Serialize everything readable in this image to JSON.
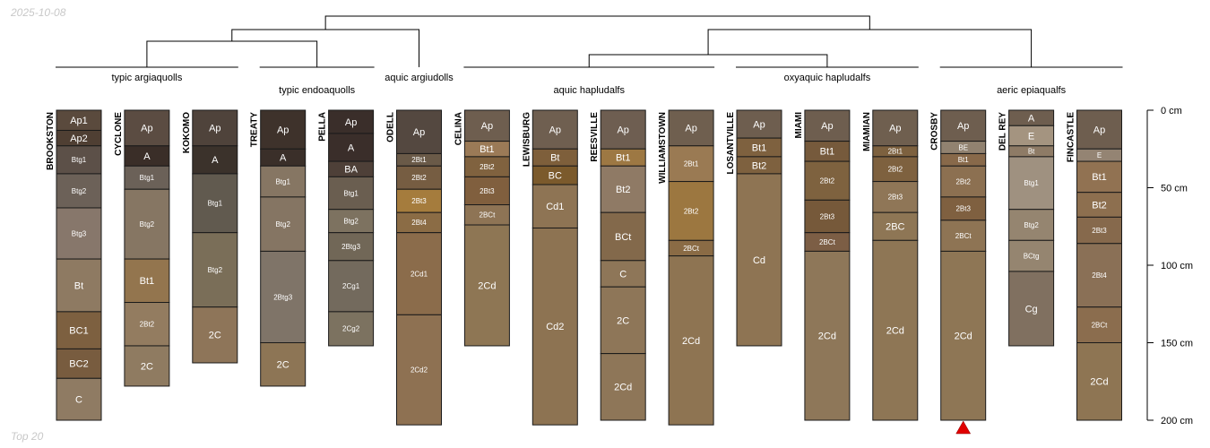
{
  "date_text": "2025-10-08",
  "footer_text": "Top 20",
  "chart_data": {
    "type": "soil-profile-sketch",
    "title": "",
    "depth_unit": "cm",
    "depth_axis": {
      "min": 0,
      "max": 200,
      "ticks": [
        0,
        50,
        100,
        150,
        200
      ],
      "tick_labels": [
        "0 cm",
        "50 cm",
        "100 cm",
        "150 cm",
        "200 cm"
      ]
    },
    "marker": {
      "profile": "CROSBY",
      "shape": "triangle",
      "color": "#e00000"
    },
    "taxa": [
      {
        "name": "typic argiaquolls",
        "row": 0,
        "profiles": [
          "BROOKSTON",
          "CYCLONE",
          "KOKOMO"
        ]
      },
      {
        "name": "typic endoaquolls",
        "row": 1,
        "profiles": [
          "TREATY",
          "PELLA"
        ]
      },
      {
        "name": "aquic argiudolls",
        "row": 0,
        "profiles": [
          "ODELL"
        ]
      },
      {
        "name": "aquic hapludalfs",
        "row": 1,
        "profiles": [
          "CELINA",
          "LEWISBURG",
          "REESVILLE",
          "WILLIAMSTOWN"
        ]
      },
      {
        "name": "oxyaquic hapludalfs",
        "row": 0,
        "profiles": [
          "LOSANTVILLE",
          "MIAMI",
          "MIAMIAN"
        ]
      },
      {
        "name": "aeric epiaqualfs",
        "row": 1,
        "profiles": [
          "CROSBY",
          "DEL REY",
          "FINCASTLE"
        ]
      }
    ],
    "profiles": [
      {
        "name": "BROOKSTON",
        "horizons": [
          {
            "name": "Ap1",
            "top": 0,
            "bottom": 13,
            "color": "#5a4a3d"
          },
          {
            "name": "Ap2",
            "top": 13,
            "bottom": 23,
            "color": "#4f3f33"
          },
          {
            "name": "Btg1",
            "top": 23,
            "bottom": 41,
            "color": "#5c5048"
          },
          {
            "name": "Btg2",
            "top": 41,
            "bottom": 63,
            "color": "#6c6158"
          },
          {
            "name": "Btg3",
            "top": 63,
            "bottom": 96,
            "color": "#87776b"
          },
          {
            "name": "Bt",
            "top": 96,
            "bottom": 130,
            "color": "#8e7a62"
          },
          {
            "name": "BC1",
            "top": 130,
            "bottom": 154,
            "color": "#7d6040"
          },
          {
            "name": "BC2",
            "top": 154,
            "bottom": 173,
            "color": "#785c3f"
          },
          {
            "name": "C",
            "top": 173,
            "bottom": 200,
            "color": "#8f7b63"
          }
        ]
      },
      {
        "name": "CYCLONE",
        "horizons": [
          {
            "name": "Ap",
            "top": 0,
            "bottom": 23,
            "color": "#5b4c42"
          },
          {
            "name": "A",
            "top": 23,
            "bottom": 36,
            "color": "#3a2e28"
          },
          {
            "name": "Btg1",
            "top": 36,
            "bottom": 51,
            "color": "#6b6158"
          },
          {
            "name": "Btg2",
            "top": 51,
            "bottom": 96,
            "color": "#867663"
          },
          {
            "name": "Bt1",
            "top": 96,
            "bottom": 124,
            "color": "#93754e"
          },
          {
            "name": "2Bt2",
            "top": 124,
            "bottom": 152,
            "color": "#937c60"
          },
          {
            "name": "2C",
            "top": 152,
            "bottom": 178,
            "color": "#8f7b61"
          }
        ]
      },
      {
        "name": "KOKOMO",
        "horizons": [
          {
            "name": "Ap",
            "top": 0,
            "bottom": 23,
            "color": "#4f433b"
          },
          {
            "name": "A",
            "top": 23,
            "bottom": 41,
            "color": "#3b322b"
          },
          {
            "name": "Btg1",
            "top": 41,
            "bottom": 79,
            "color": "#615a4f"
          },
          {
            "name": "Btg2",
            "top": 79,
            "bottom": 127,
            "color": "#7a6e58"
          },
          {
            "name": "2C",
            "top": 127,
            "bottom": 163,
            "color": "#8e7559"
          }
        ]
      },
      {
        "name": "TREATY",
        "horizons": [
          {
            "name": "Ap",
            "top": 0,
            "bottom": 25,
            "color": "#3e322b"
          },
          {
            "name": "A",
            "top": 25,
            "bottom": 36,
            "color": "#3a2f29"
          },
          {
            "name": "Btg1",
            "top": 36,
            "bottom": 56,
            "color": "#867663"
          },
          {
            "name": "Btg2",
            "top": 56,
            "bottom": 91,
            "color": "#857563"
          },
          {
            "name": "2Btg3",
            "top": 91,
            "bottom": 150,
            "color": "#7f7468"
          },
          {
            "name": "2C",
            "top": 150,
            "bottom": 178,
            "color": "#8d7555"
          }
        ]
      },
      {
        "name": "PELLA",
        "horizons": [
          {
            "name": "Ap",
            "top": 0,
            "bottom": 15,
            "color": "#3a2e2a"
          },
          {
            "name": "A",
            "top": 15,
            "bottom": 33,
            "color": "#3a2e2a"
          },
          {
            "name": "BA",
            "top": 33,
            "bottom": 43,
            "color": "#4e4038"
          },
          {
            "name": "Btg1",
            "top": 43,
            "bottom": 64,
            "color": "#6a5e50"
          },
          {
            "name": "Btg2",
            "top": 64,
            "bottom": 79,
            "color": "#7d7260"
          },
          {
            "name": "2Btg3",
            "top": 79,
            "bottom": 97,
            "color": "#716757"
          },
          {
            "name": "2Cg1",
            "top": 97,
            "bottom": 130,
            "color": "#736a5d"
          },
          {
            "name": "2Cg2",
            "top": 130,
            "bottom": 152,
            "color": "#7c7260"
          }
        ]
      },
      {
        "name": "ODELL",
        "horizons": [
          {
            "name": "Ap",
            "top": 0,
            "bottom": 28,
            "color": "#544840"
          },
          {
            "name": "2Bt1",
            "top": 28,
            "bottom": 36,
            "color": "#6a5a48"
          },
          {
            "name": "2Bt2",
            "top": 36,
            "bottom": 51,
            "color": "#765d42"
          },
          {
            "name": "2Bt3",
            "top": 51,
            "bottom": 66,
            "color": "#a57c3d"
          },
          {
            "name": "2Bt4",
            "top": 66,
            "bottom": 79,
            "color": "#8b6c45"
          },
          {
            "name": "2Cd1",
            "top": 79,
            "bottom": 132,
            "color": "#8b6c4b"
          },
          {
            "name": "2Cd2",
            "top": 132,
            "bottom": 203,
            "color": "#8e7152"
          }
        ]
      },
      {
        "name": "CELINA",
        "horizons": [
          {
            "name": "Ap",
            "top": 0,
            "bottom": 20,
            "color": "#6e5e4f"
          },
          {
            "name": "Bt1",
            "top": 20,
            "bottom": 30,
            "color": "#9b7a57"
          },
          {
            "name": "2Bt2",
            "top": 30,
            "bottom": 43,
            "color": "#80623f"
          },
          {
            "name": "2Bt3",
            "top": 43,
            "bottom": 61,
            "color": "#805f3e"
          },
          {
            "name": "2BCt",
            "top": 61,
            "bottom": 74,
            "color": "#8e7455"
          },
          {
            "name": "2Cd",
            "top": 74,
            "bottom": 152,
            "color": "#8e7654"
          }
        ]
      },
      {
        "name": "LEWISBURG",
        "horizons": [
          {
            "name": "Ap",
            "top": 0,
            "bottom": 25,
            "color": "#6f5f50"
          },
          {
            "name": "Bt",
            "top": 25,
            "bottom": 36,
            "color": "#7e5f3b"
          },
          {
            "name": "BC",
            "top": 36,
            "bottom": 48,
            "color": "#7b5a2c"
          },
          {
            "name": "Cd1",
            "top": 48,
            "bottom": 76,
            "color": "#8e7454"
          },
          {
            "name": "Cd2",
            "top": 76,
            "bottom": 203,
            "color": "#8d7352"
          }
        ]
      },
      {
        "name": "REESVILLE",
        "horizons": [
          {
            "name": "Ap",
            "top": 0,
            "bottom": 25,
            "color": "#6e5e51"
          },
          {
            "name": "Bt1",
            "top": 25,
            "bottom": 36,
            "color": "#9d7843"
          },
          {
            "name": "Bt2",
            "top": 36,
            "bottom": 66,
            "color": "#8f7a65"
          },
          {
            "name": "BCt",
            "top": 66,
            "bottom": 97,
            "color": "#83694b"
          },
          {
            "name": "C",
            "top": 97,
            "bottom": 114,
            "color": "#8e7658"
          },
          {
            "name": "2C",
            "top": 114,
            "bottom": 157,
            "color": "#8e7658"
          },
          {
            "name": "2Cd",
            "top": 157,
            "bottom": 200,
            "color": "#8e7658"
          }
        ]
      },
      {
        "name": "WILLIAMSTOWN",
        "horizons": [
          {
            "name": "Ap",
            "top": 0,
            "bottom": 23,
            "color": "#6f5f4f"
          },
          {
            "name": "2Bt1",
            "top": 23,
            "bottom": 46,
            "color": "#9a7a53"
          },
          {
            "name": "2Bt2",
            "top": 46,
            "bottom": 84,
            "color": "#9c7740"
          },
          {
            "name": "2BCt",
            "top": 84,
            "bottom": 94,
            "color": "#8a6b45"
          },
          {
            "name": "2Cd",
            "top": 94,
            "bottom": 203,
            "color": "#8e7452"
          }
        ]
      },
      {
        "name": "LOSANTVILLE",
        "horizons": [
          {
            "name": "Ap",
            "top": 0,
            "bottom": 18,
            "color": "#6e5e4f"
          },
          {
            "name": "Bt1",
            "top": 18,
            "bottom": 30,
            "color": "#7e613f"
          },
          {
            "name": "Bt2",
            "top": 30,
            "bottom": 41,
            "color": "#7e613f"
          },
          {
            "name": "Cd",
            "top": 41,
            "bottom": 152,
            "color": "#8e7453"
          }
        ]
      },
      {
        "name": "MIAMI",
        "horizons": [
          {
            "name": "Ap",
            "top": 0,
            "bottom": 20,
            "color": "#6e5e4f"
          },
          {
            "name": "Bt1",
            "top": 20,
            "bottom": 33,
            "color": "#765a3c"
          },
          {
            "name": "2Bt2",
            "top": 33,
            "bottom": 58,
            "color": "#7e623f"
          },
          {
            "name": "2Bt3",
            "top": 58,
            "bottom": 79,
            "color": "#76593a"
          },
          {
            "name": "2BCt",
            "top": 79,
            "bottom": 91,
            "color": "#7c5e45"
          },
          {
            "name": "2Cd",
            "top": 91,
            "bottom": 200,
            "color": "#8e7759"
          }
        ]
      },
      {
        "name": "MIAMIAN",
        "horizons": [
          {
            "name": "Ap",
            "top": 0,
            "bottom": 23,
            "color": "#6f5f4f"
          },
          {
            "name": "2Bt1",
            "top": 23,
            "bottom": 30,
            "color": "#7d613f"
          },
          {
            "name": "2Bt2",
            "top": 30,
            "bottom": 46,
            "color": "#7e613f"
          },
          {
            "name": "2Bt3",
            "top": 46,
            "bottom": 66,
            "color": "#8f7657"
          },
          {
            "name": "2BC",
            "top": 66,
            "bottom": 84,
            "color": "#8e7655"
          },
          {
            "name": "2Cd",
            "top": 84,
            "bottom": 200,
            "color": "#8e7655"
          }
        ]
      },
      {
        "name": "CROSBY",
        "horizons": [
          {
            "name": "Ap",
            "top": 0,
            "bottom": 20,
            "color": "#6e5e4f"
          },
          {
            "name": "BE",
            "top": 20,
            "bottom": 28,
            "color": "#918270"
          },
          {
            "name": "Bt1",
            "top": 28,
            "bottom": 36,
            "color": "#88694a"
          },
          {
            "name": "2Bt2",
            "top": 36,
            "bottom": 56,
            "color": "#8c7051"
          },
          {
            "name": "2Bt3",
            "top": 56,
            "bottom": 71,
            "color": "#7f6040"
          },
          {
            "name": "2BCt",
            "top": 71,
            "bottom": 91,
            "color": "#8e7454"
          },
          {
            "name": "2Cd",
            "top": 91,
            "bottom": 200,
            "color": "#8e7655"
          }
        ]
      },
      {
        "name": "DEL REY",
        "horizons": [
          {
            "name": "A",
            "top": 0,
            "bottom": 10,
            "color": "#6e5e4f"
          },
          {
            "name": "E",
            "top": 10,
            "bottom": 23,
            "color": "#a49480"
          },
          {
            "name": "Bt",
            "top": 23,
            "bottom": 30,
            "color": "#8e7b66"
          },
          {
            "name": "Btg1",
            "top": 30,
            "bottom": 64,
            "color": "#9f9180"
          },
          {
            "name": "Btg2",
            "top": 64,
            "bottom": 84,
            "color": "#958570"
          },
          {
            "name": "BCtg",
            "top": 84,
            "bottom": 104,
            "color": "#958570"
          },
          {
            "name": "Cg",
            "top": 104,
            "bottom": 152,
            "color": "#807060"
          }
        ]
      },
      {
        "name": "FINCASTLE",
        "horizons": [
          {
            "name": "Ap",
            "top": 0,
            "bottom": 25,
            "color": "#6e5e4f"
          },
          {
            "name": "E",
            "top": 25,
            "bottom": 33,
            "color": "#948473"
          },
          {
            "name": "Bt1",
            "top": 33,
            "bottom": 53,
            "color": "#917252"
          },
          {
            "name": "Bt2",
            "top": 53,
            "bottom": 69,
            "color": "#8d6f4f"
          },
          {
            "name": "2Bt3",
            "top": 69,
            "bottom": 86,
            "color": "#86694c"
          },
          {
            "name": "2Bt4",
            "top": 86,
            "bottom": 127,
            "color": "#8a7056"
          },
          {
            "name": "2BCt",
            "top": 127,
            "bottom": 150,
            "color": "#8b6d4e"
          },
          {
            "name": "2Cd",
            "top": 150,
            "bottom": 200,
            "color": "#8e7553"
          }
        ]
      }
    ]
  }
}
